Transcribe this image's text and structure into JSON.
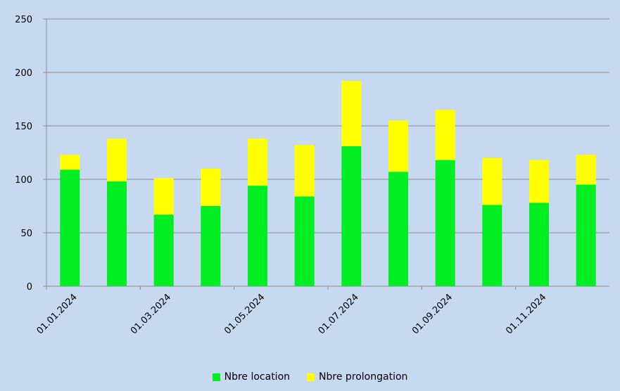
{
  "chart_data": {
    "type": "bar",
    "stacked": true,
    "categories": [
      "01.01.2024",
      "01.02.2024",
      "01.03.2024",
      "01.04.2024",
      "01.05.2024",
      "01.06.2024",
      "01.07.2024",
      "01.08.2024",
      "01.09.2024",
      "01.10.2024",
      "01.11.2024",
      "01.12.2024"
    ],
    "x_tick_labels": [
      "01.01.2024",
      "01.03.2024",
      "01.05.2024",
      "01.07.2024",
      "01.09.2024",
      "01.11.2024"
    ],
    "series": [
      {
        "name": "Nbre location",
        "color": "#00ee22",
        "values": [
          109,
          98,
          67,
          75,
          94,
          84,
          131,
          107,
          118,
          76,
          78,
          95
        ]
      },
      {
        "name": "Nbre prolongation",
        "color": "#ffff00",
        "values": [
          14,
          40,
          34,
          35,
          44,
          48,
          61,
          48,
          47,
          44,
          40,
          28
        ]
      }
    ],
    "ylim": [
      0,
      250
    ],
    "y_ticks": [
      0,
      50,
      100,
      150,
      200,
      250
    ],
    "grid": true,
    "legend_position": "bottom"
  }
}
